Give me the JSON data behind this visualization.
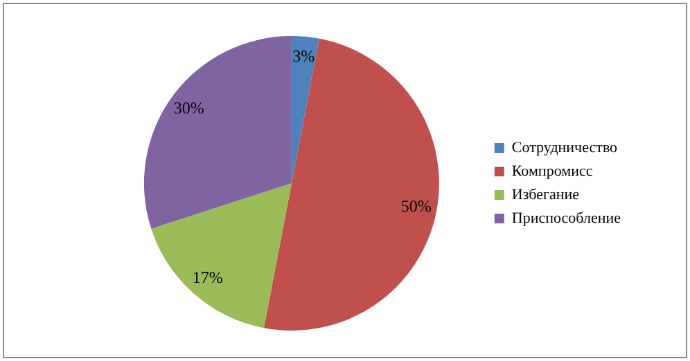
{
  "chart_data": {
    "type": "pie",
    "categories": [
      "Сотрудничество",
      "Компромисс",
      "Избегание",
      "Приспособление"
    ],
    "values": [
      3,
      50,
      17,
      30
    ],
    "colors": [
      "#4f81bd",
      "#c0504d",
      "#9bbb59",
      "#8064a2"
    ],
    "value_labels": [
      "3%",
      "50%",
      "17%",
      "30%"
    ],
    "legend": "right"
  }
}
